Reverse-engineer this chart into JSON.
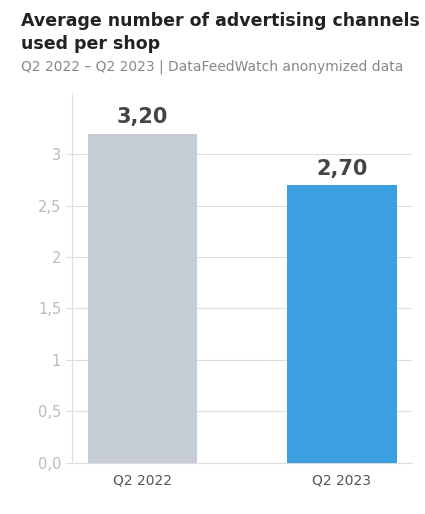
{
  "categories": [
    "Q2 2022",
    "Q2 2023"
  ],
  "values": [
    3.2,
    2.7
  ],
  "bar_colors": [
    "#c5ccd4",
    "#3b9fe0"
  ],
  "value_labels": [
    "3,20",
    "2,70"
  ],
  "title_line1": "Average number of advertising channels",
  "title_line2": "used per shop",
  "subtitle": "Q2 2022 – Q2 2023 | DataFeedWatch anonymized data",
  "title_fontsize": 12.5,
  "subtitle_fontsize": 10,
  "ylabel_ticks": [
    "0,0",
    "0,5",
    "1",
    "1,5",
    "2",
    "2,5",
    "3"
  ],
  "ytick_values": [
    0.0,
    0.5,
    1.0,
    1.5,
    2.0,
    2.5,
    3.0
  ],
  "ylim": [
    0,
    3.6
  ],
  "background_color": "#ffffff",
  "header_background": "#f0f0f0",
  "bar_width": 0.55,
  "label_fontsize": 15,
  "tick_color": "#cccccc",
  "grid_color": "#dddddd",
  "tick_label_color": "#bbbbbb",
  "xlabel_color": "#555555",
  "title_color": "#222222",
  "subtitle_color": "#888888"
}
